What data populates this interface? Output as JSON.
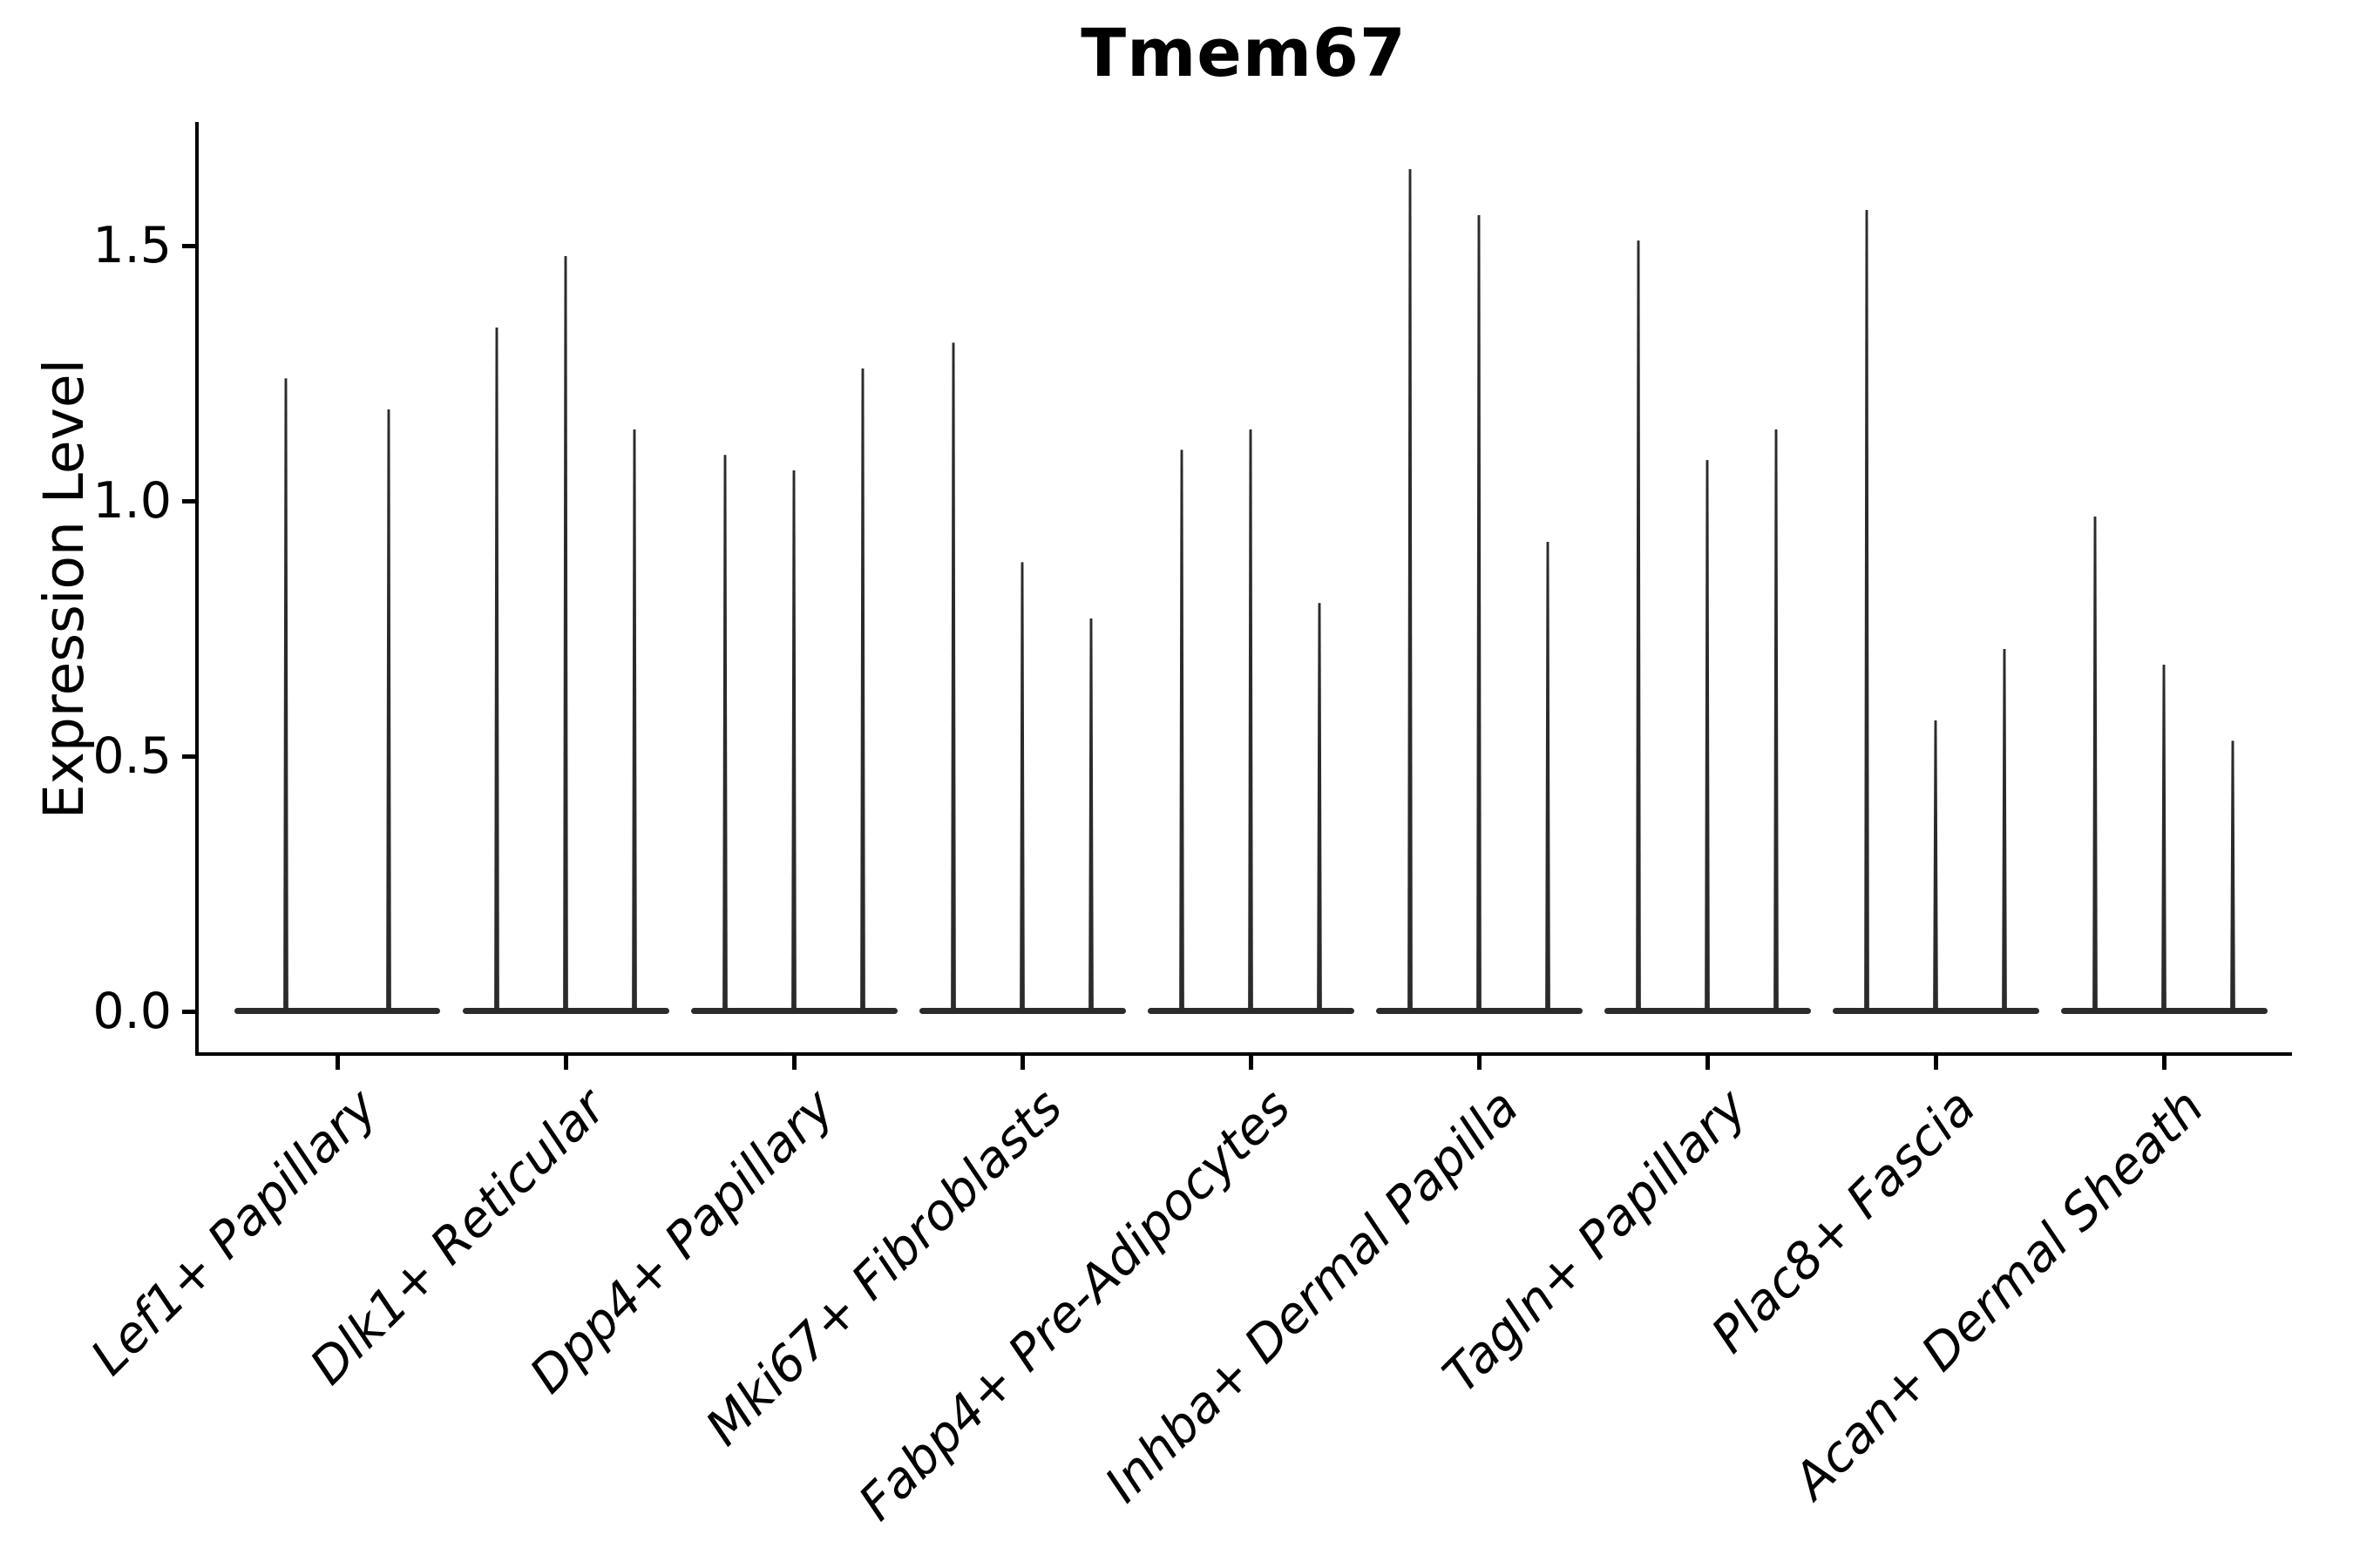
{
  "page": {
    "background": "#ffffff",
    "description": "Single-gene violin plot (Seurat VlnPlot style), thin black spike violins grouped by fibroblast cluster"
  },
  "chart_data": {
    "type": "violin",
    "title": "Tmem67",
    "xlabel": "",
    "ylabel": "Expression Level",
    "ytick_labels": [
      "0.0",
      "0.5",
      "1.0",
      "1.5"
    ],
    "ytick_values": [
      0.0,
      0.5,
      1.0,
      1.5
    ],
    "ylim": [
      -0.08,
      1.74
    ],
    "grid": false,
    "legend": "none",
    "categories": [
      "Lef1+ Papillary",
      "Dlk1+ Reticular",
      "Dpp4+ Papillary",
      "Mki67+ Fibroblasts",
      "Fabp4+ Pre-Adipocytes",
      "Inhba+ Dermal Papilla",
      "Tagln+ Papillary",
      "Plac8+ Fascia",
      "Acan+ Dermal Sheath"
    ],
    "groups": [
      {
        "category": "Lef1+ Papillary",
        "violin_peaks": [
          1.24,
          1.18
        ]
      },
      {
        "category": "Dlk1+ Reticular",
        "violin_peaks": [
          1.34,
          1.48,
          1.14
        ]
      },
      {
        "category": "Dpp4+ Papillary",
        "violin_peaks": [
          1.09,
          1.06,
          1.26
        ]
      },
      {
        "category": "Mki67+ Fibroblasts",
        "violin_peaks": [
          1.31,
          0.88,
          0.77
        ]
      },
      {
        "category": "Fabp4+ Pre-Adipocytes",
        "violin_peaks": [
          1.1,
          1.14,
          0.8
        ]
      },
      {
        "category": "Inhba+ Dermal Papilla",
        "violin_peaks": [
          1.65,
          1.56,
          0.92
        ]
      },
      {
        "category": "Tagln+ Papillary",
        "violin_peaks": [
          1.51,
          1.08,
          1.14
        ]
      },
      {
        "category": "Plac8+ Fascia",
        "violin_peaks": [
          1.57,
          0.57,
          0.71
        ]
      },
      {
        "category": "Acan+ Dermal Sheath",
        "violin_peaks": [
          0.97,
          0.68,
          0.53
        ]
      }
    ],
    "annotations": {
      "violins_are_zero_inflated": "each violin is a flat base at 0 with a single thin spike to its max expression value"
    },
    "colors": {
      "violin": "#2b2b2b",
      "axis": "#000000",
      "text": "#000000",
      "background": "#ffffff"
    }
  }
}
